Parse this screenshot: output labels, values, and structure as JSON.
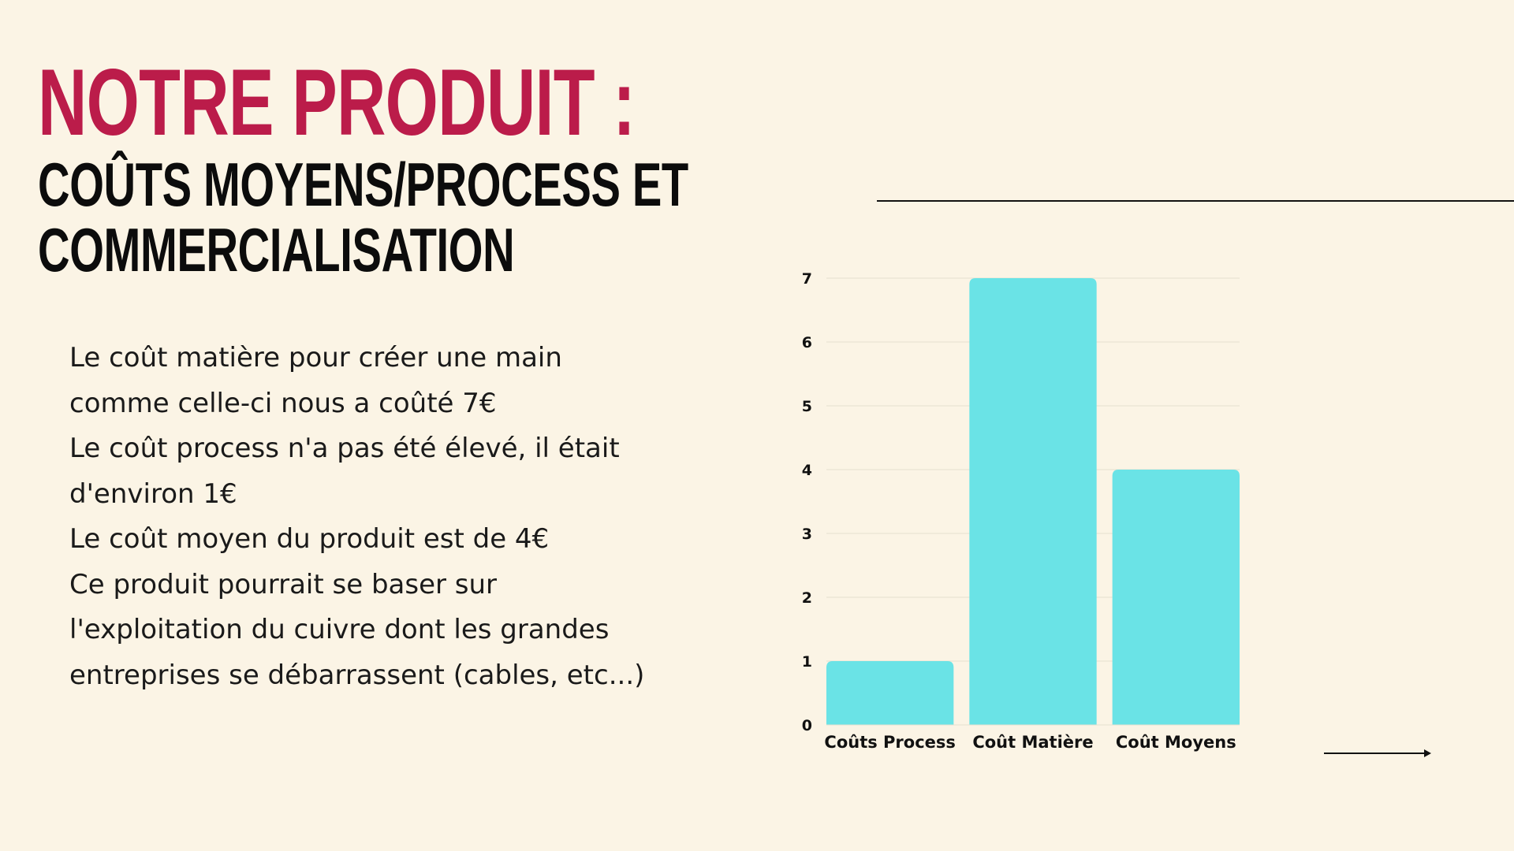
{
  "slide": {
    "title": "NOTRE PRODUIT :",
    "subtitle_lines": [
      "COÛTS MOYENS/PROCESS ET",
      "COMMERCIALISATION"
    ],
    "body_lines": [
      "Le coût matière pour créer une main",
      "comme celle-ci nous a coûté 7€",
      "Le coût process n'a pas été élevé, il était",
      "d'environ 1€",
      "Le coût moyen du produit est de 4€",
      "Ce produit pourrait se baser sur",
      "l'exploitation du cuivre dont les grandes",
      "entreprises se débarrassent (cables, etc...)"
    ],
    "colors": {
      "background": "#fbf4e5",
      "title": "#bb1c4a",
      "bar": "#6ae3e6",
      "gridline": "#e6dfd0"
    }
  },
  "chart_data": {
    "type": "bar",
    "categories": [
      "Coûts Process",
      "Coût Matière",
      "Coût Moyens"
    ],
    "values": [
      1,
      7,
      4
    ],
    "ylim": [
      0,
      7
    ],
    "yticks": [
      0,
      1,
      2,
      3,
      4,
      5,
      6,
      7
    ],
    "grid": true,
    "title": "",
    "xlabel": "",
    "ylabel": ""
  }
}
